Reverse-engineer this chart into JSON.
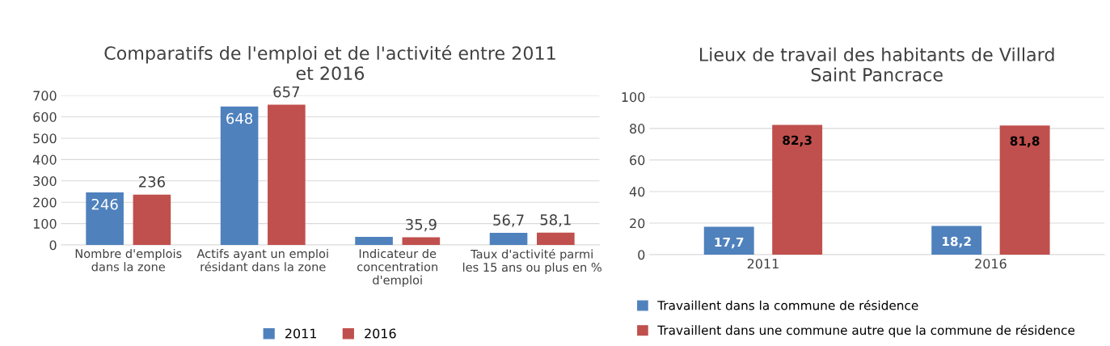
{
  "chart_data": [
    {
      "type": "bar",
      "title": "Comparatifs de l'emploi et de l'activité entre 2011\net 2016",
      "categories": [
        "Nombre d'emplois\ndans la zone",
        "Actifs ayant un emploi\nrésidant dans la zone",
        "Indicateur de\nconcentration\nd'emploi",
        "Taux d'activité parmi\nles 15 ans ou plus en %"
      ],
      "series": [
        {
          "name": "2011",
          "color": "#4f81bd",
          "values": [
            246,
            648,
            38,
            56.7
          ],
          "value_labels": [
            "246",
            "648",
            null,
            "56,7"
          ]
        },
        {
          "name": "2016",
          "color": "#c0504d",
          "values": [
            236,
            657,
            35.9,
            58.1
          ],
          "value_labels": [
            "236",
            "657",
            "35,9",
            "58,1"
          ]
        }
      ],
      "ylim": [
        0,
        700
      ],
      "yticks": [
        0,
        100,
        200,
        300,
        400,
        500,
        600,
        700
      ],
      "grid": "y",
      "legend": "bottom"
    },
    {
      "type": "bar",
      "title": "Lieux de travail des habitants de Villard\nSaint Pancrace",
      "categories": [
        "2011",
        "2016"
      ],
      "series": [
        {
          "name": "Travaillent dans la commune de résidence",
          "color": "#4f81bd",
          "values": [
            17.7,
            18.2
          ],
          "value_labels": [
            "17,7",
            "18,2"
          ]
        },
        {
          "name": "Travaillent dans une commune autre que la commune de résidence",
          "color": "#c0504d",
          "values": [
            82.3,
            81.8
          ],
          "value_labels": [
            "82,3",
            "81,8"
          ]
        }
      ],
      "ylim": [
        0,
        100
      ],
      "yticks": [
        0,
        20,
        40,
        60,
        80,
        100
      ],
      "grid": "y",
      "legend": "bottom"
    }
  ]
}
